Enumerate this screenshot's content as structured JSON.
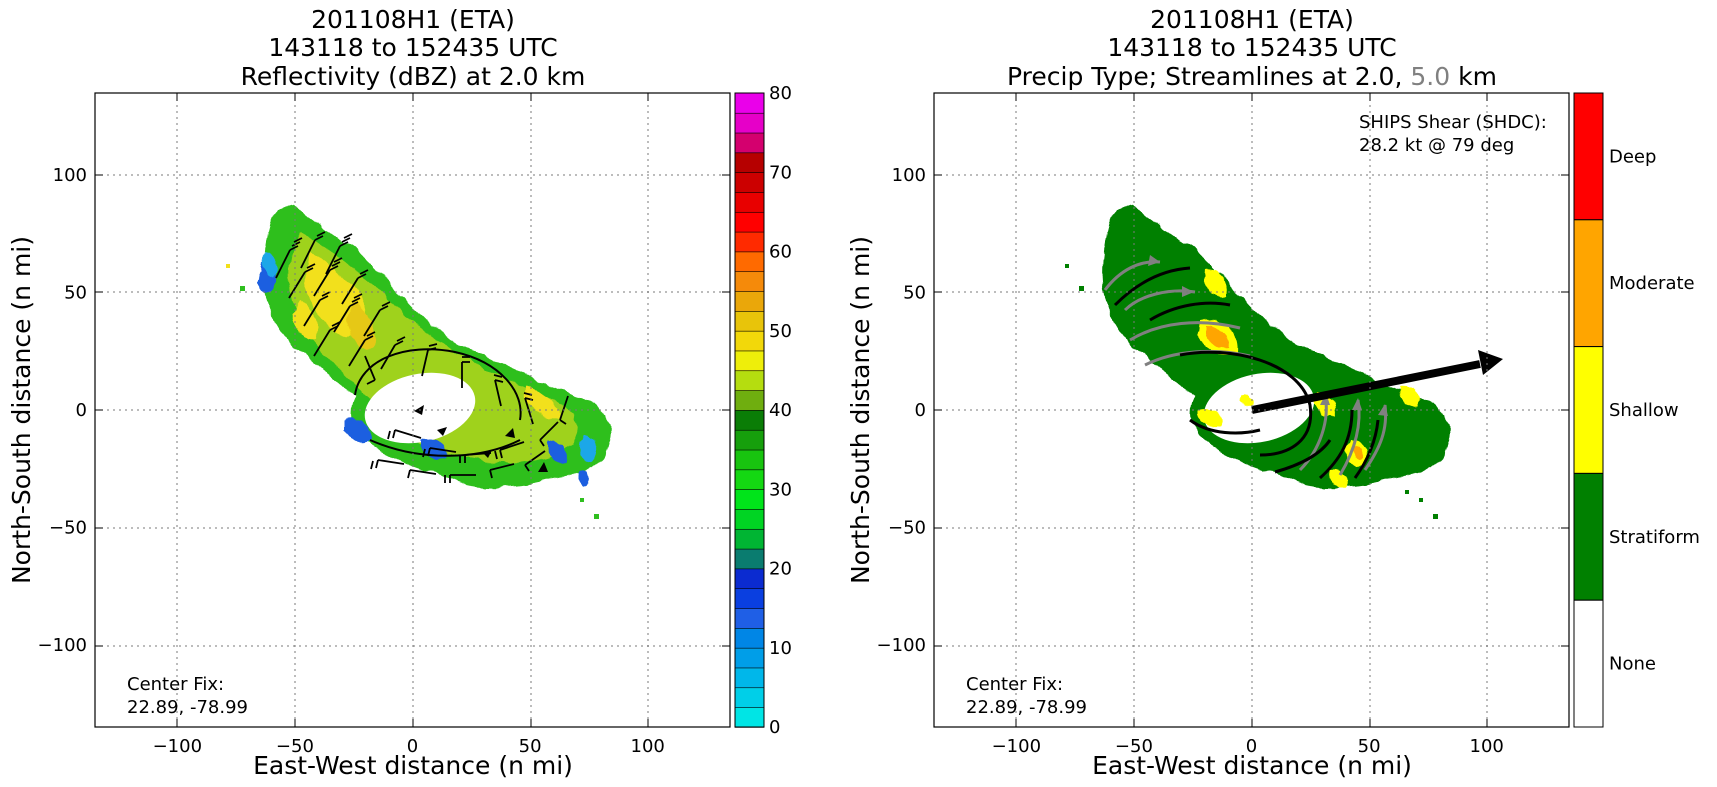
{
  "left_panel": {
    "title_lines": [
      "201108H1 (ETA)",
      "143118 to 152435 UTC",
      "Reflectivity (dBZ) at 2.0 km"
    ],
    "xlabel": "East-West distance (n mi)",
    "ylabel": "North-South distance (n mi)",
    "center_fix_label": "Center Fix:",
    "center_fix_value": "22.89, -78.99",
    "colorbar_ticks": [
      "0",
      "10",
      "20",
      "30",
      "40",
      "50",
      "60",
      "70",
      "80"
    ]
  },
  "right_panel": {
    "title_line1": "201108H1 (ETA)",
    "title_line2": "143118 to 152435 UTC",
    "title_line3_a": "Precip Type; Streamlines at 2.0,",
    "title_line3_b": "5.0",
    "title_line3_c": "km",
    "xlabel": "East-West distance (n mi)",
    "ylabel": "North-South distance (n mi)",
    "center_fix_label": "Center Fix:",
    "center_fix_value": "22.89, -78.99",
    "shear_label": "SHIPS Shear (SHDC):",
    "shear_value": "28.2 kt @ 79 deg",
    "categories": [
      "Deep",
      "Moderate",
      "Shallow",
      "Stratiform",
      "None"
    ]
  },
  "colors": {
    "deep": "#ff0000",
    "moderate": "#ffa500",
    "shallow": "#ffff00",
    "stratiform": "#008000",
    "none": "#ffffff",
    "streamline_2km": "#000000",
    "streamline_5km": "#808080"
  },
  "chart_data": [
    {
      "type": "heatmap",
      "title": "201108H1 (ETA) 143118 to 152435 UTC Reflectivity (dBZ) at 2.0 km",
      "xlabel": "East-West distance (n mi)",
      "ylabel": "North-South distance (n mi)",
      "xlim": [
        -135,
        135
      ],
      "ylim": [
        -135,
        135
      ],
      "xticks": [
        -100,
        -50,
        0,
        50,
        100
      ],
      "yticks": [
        -100,
        -50,
        0,
        50,
        100
      ],
      "grid": true,
      "colorbar": {
        "label_ticks": [
          0,
          10,
          20,
          30,
          40,
          50,
          60,
          70,
          80
        ],
        "range": [
          0,
          80
        ],
        "step": 2.5
      }
    },
    {
      "type": "heatmap",
      "title": "201108H1 (ETA) 143118 to 152435 UTC Precip Type; Streamlines at 2.0, 5.0 km",
      "xlabel": "East-West distance (n mi)",
      "ylabel": "North-South distance (n mi)",
      "xlim": [
        -135,
        135
      ],
      "ylim": [
        -135,
        135
      ],
      "xticks": [
        -100,
        -50,
        0,
        50,
        100
      ],
      "yticks": [
        -100,
        -50,
        0,
        50,
        100
      ],
      "grid": true,
      "categories": [
        "None",
        "Stratiform",
        "Shallow",
        "Moderate",
        "Deep"
      ],
      "shear_vector": {
        "speed_kt": 28.2,
        "direction_deg": 79,
        "tail": [
          0,
          0
        ],
        "head": [
          107,
          20
        ]
      }
    }
  ]
}
